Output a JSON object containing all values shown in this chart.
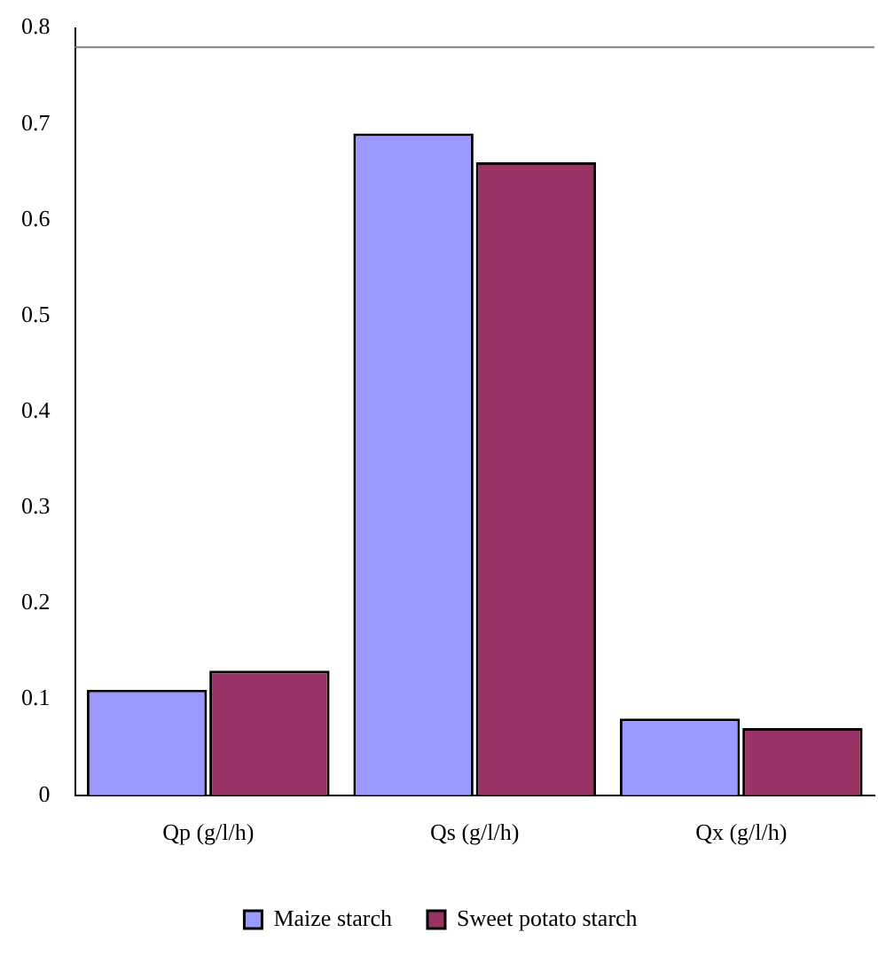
{
  "chart_data": {
    "type": "bar",
    "categories": [
      "Qp (g/l/h)",
      "Qs (g/l/h)",
      "Qx (g/l/h)"
    ],
    "series": [
      {
        "name": "Maize starch",
        "color": "#9999ff",
        "values": [
          0.11,
          0.69,
          0.08
        ]
      },
      {
        "name": "Sweet potato starch",
        "color": "#993366",
        "values": [
          0.13,
          0.66,
          0.07
        ]
      }
    ],
    "ylim": [
      0,
      0.8
    ],
    "yticks": [
      0,
      0.1,
      0.2,
      0.3,
      0.4,
      0.5,
      0.6,
      0.7,
      0.8
    ],
    "grid": false,
    "legend": "bottom",
    "ref_lines": [
      {
        "axis": "y",
        "value": 0.78,
        "color": "#808080"
      }
    ]
  }
}
